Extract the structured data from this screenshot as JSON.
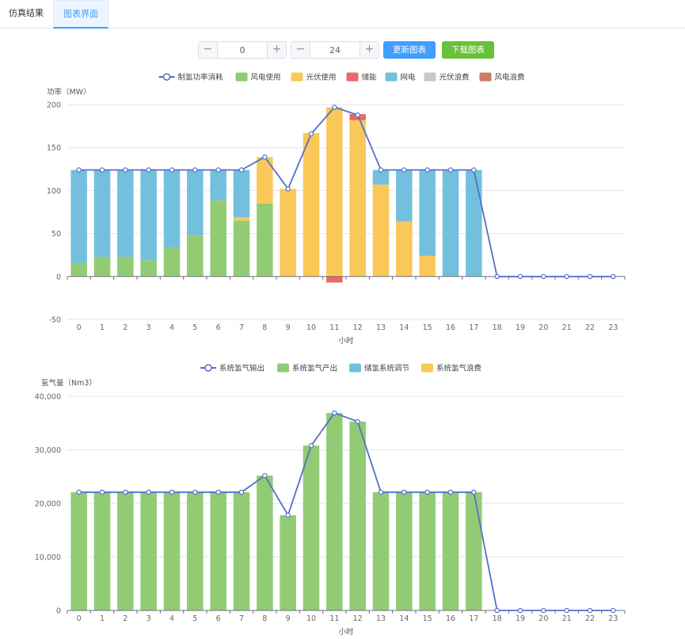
{
  "tabs": [
    {
      "label": "仿真结果"
    },
    {
      "label": "图表界面"
    }
  ],
  "controls": {
    "start_value": "0",
    "end_value": "24",
    "minus": "−",
    "plus": "+",
    "update_button": "更新图表",
    "download_button": "下载图表"
  },
  "colors": {
    "line": "#5470c6",
    "green": "#91cc75",
    "yellow": "#fac858",
    "red": "#ee6666",
    "blue": "#73c0de",
    "gray": "#c5c8cc",
    "brown": "#c97c66"
  },
  "chart_data": [
    {
      "type": "bar",
      "stacked": true,
      "ylabel": "功率（MW）",
      "xlabel": "小时",
      "ylim": [
        -50,
        200
      ],
      "yticks": [
        200,
        150,
        100,
        50,
        0,
        -50
      ],
      "categories": [
        "0",
        "1",
        "2",
        "3",
        "4",
        "5",
        "6",
        "7",
        "8",
        "9",
        "10",
        "11",
        "12",
        "13",
        "14",
        "15",
        "16",
        "17",
        "18",
        "19",
        "20",
        "21",
        "22",
        "23"
      ],
      "legend": [
        {
          "name": "制氢功率消耗",
          "kind": "line",
          "color": "#5470c6"
        },
        {
          "name": "风电使用",
          "kind": "bar",
          "color": "#91cc75"
        },
        {
          "name": "光伏使用",
          "kind": "bar",
          "color": "#fac858"
        },
        {
          "name": "储能",
          "kind": "bar",
          "color": "#ee6666"
        },
        {
          "name": "网电",
          "kind": "bar",
          "color": "#73c0de"
        },
        {
          "name": "光伏浪费",
          "kind": "bar",
          "color": "#c5c8cc"
        },
        {
          "name": "风电浪费",
          "kind": "bar",
          "color": "#c97c66"
        }
      ],
      "series": [
        {
          "name": "风电使用",
          "color": "#91cc75",
          "values": [
            16,
            23,
            23,
            19,
            34,
            48,
            89,
            65,
            85,
            0,
            0,
            0,
            0,
            0,
            0,
            0,
            0,
            0,
            0,
            0,
            0,
            0,
            0,
            0
          ]
        },
        {
          "name": "光伏使用",
          "color": "#fac858",
          "values": [
            0,
            0,
            0,
            0,
            0,
            0,
            0,
            4,
            54,
            102,
            167,
            197,
            182,
            107,
            64,
            24,
            0,
            0,
            0,
            0,
            0,
            0,
            0,
            0
          ]
        },
        {
          "name": "储能",
          "color": "#ee6666",
          "values": [
            0,
            0,
            0,
            0,
            0,
            0,
            0,
            0,
            0,
            0,
            0,
            -7,
            7,
            0,
            0,
            0,
            0,
            0,
            0,
            0,
            0,
            0,
            0,
            0
          ]
        },
        {
          "name": "网电",
          "color": "#73c0de",
          "values": [
            108,
            101,
            101,
            105,
            90,
            76,
            35,
            55,
            0,
            0,
            0,
            0,
            0,
            17,
            60,
            100,
            124,
            124,
            0,
            0,
            0,
            0,
            0,
            0
          ]
        },
        {
          "name": "光伏浪费",
          "color": "#c5c8cc",
          "values": [
            0,
            0,
            0,
            0,
            0,
            0,
            0,
            0,
            0,
            0,
            0,
            0,
            0,
            0,
            0,
            0,
            0,
            0,
            0,
            0,
            0,
            0,
            0,
            0
          ]
        },
        {
          "name": "风电浪费",
          "color": "#c97c66",
          "values": [
            0,
            0,
            0,
            0,
            0,
            0,
            0,
            0,
            0,
            0,
            0,
            0,
            0,
            0,
            0,
            0,
            0,
            0,
            0,
            0,
            0,
            0,
            0,
            0
          ]
        }
      ],
      "line": {
        "name": "制氢功率消耗",
        "color": "#5470c6",
        "values": [
          124,
          124,
          124,
          124,
          124,
          124,
          124,
          124,
          139,
          102,
          166,
          197,
          188,
          124,
          124,
          124,
          124,
          124,
          0,
          0,
          0,
          0,
          0,
          0
        ]
      }
    },
    {
      "type": "bar",
      "stacked": true,
      "ylabel": "氢气量（Nm3）",
      "xlabel": "小时",
      "ylim": [
        0,
        40000
      ],
      "yticks": [
        40000,
        30000,
        20000,
        10000,
        0
      ],
      "ytick_labels": [
        "40,000",
        "30,000",
        "20,000",
        "10,000",
        "0"
      ],
      "categories": [
        "0",
        "1",
        "2",
        "3",
        "4",
        "5",
        "6",
        "7",
        "8",
        "9",
        "10",
        "11",
        "12",
        "13",
        "14",
        "15",
        "16",
        "17",
        "18",
        "19",
        "20",
        "21",
        "22",
        "23"
      ],
      "legend": [
        {
          "name": "系统氢气输出",
          "kind": "line",
          "color": "#5470c6"
        },
        {
          "name": "系统氢气产出",
          "kind": "bar",
          "color": "#91cc75"
        },
        {
          "name": "储氢系统调节",
          "kind": "bar",
          "color": "#73c0de"
        },
        {
          "name": "系统氢气浪费",
          "kind": "bar",
          "color": "#fac858"
        }
      ],
      "series": [
        {
          "name": "系统氢气产出",
          "color": "#91cc75",
          "values": [
            22100,
            22100,
            22100,
            22100,
            22100,
            22100,
            22100,
            22100,
            25200,
            17800,
            30800,
            36900,
            35300,
            22100,
            22100,
            22100,
            22100,
            22100,
            0,
            0,
            0,
            0,
            0,
            0
          ]
        },
        {
          "name": "储氢系统调节",
          "color": "#73c0de",
          "values": [
            0,
            0,
            0,
            0,
            0,
            0,
            0,
            0,
            0,
            0,
            0,
            0,
            0,
            0,
            0,
            0,
            0,
            0,
            0,
            0,
            0,
            0,
            0,
            0
          ]
        },
        {
          "name": "系统氢气浪费",
          "color": "#fac858",
          "values": [
            0,
            0,
            0,
            0,
            0,
            0,
            0,
            0,
            0,
            0,
            0,
            0,
            0,
            0,
            0,
            0,
            0,
            0,
            0,
            0,
            0,
            0,
            0,
            0
          ]
        }
      ],
      "line": {
        "name": "系统氢气输出",
        "color": "#5470c6",
        "values": [
          22100,
          22100,
          22100,
          22100,
          22100,
          22100,
          22100,
          22100,
          25200,
          17800,
          30800,
          36900,
          35300,
          22100,
          22100,
          22100,
          22100,
          22100,
          0,
          0,
          0,
          0,
          0,
          0
        ]
      }
    }
  ]
}
